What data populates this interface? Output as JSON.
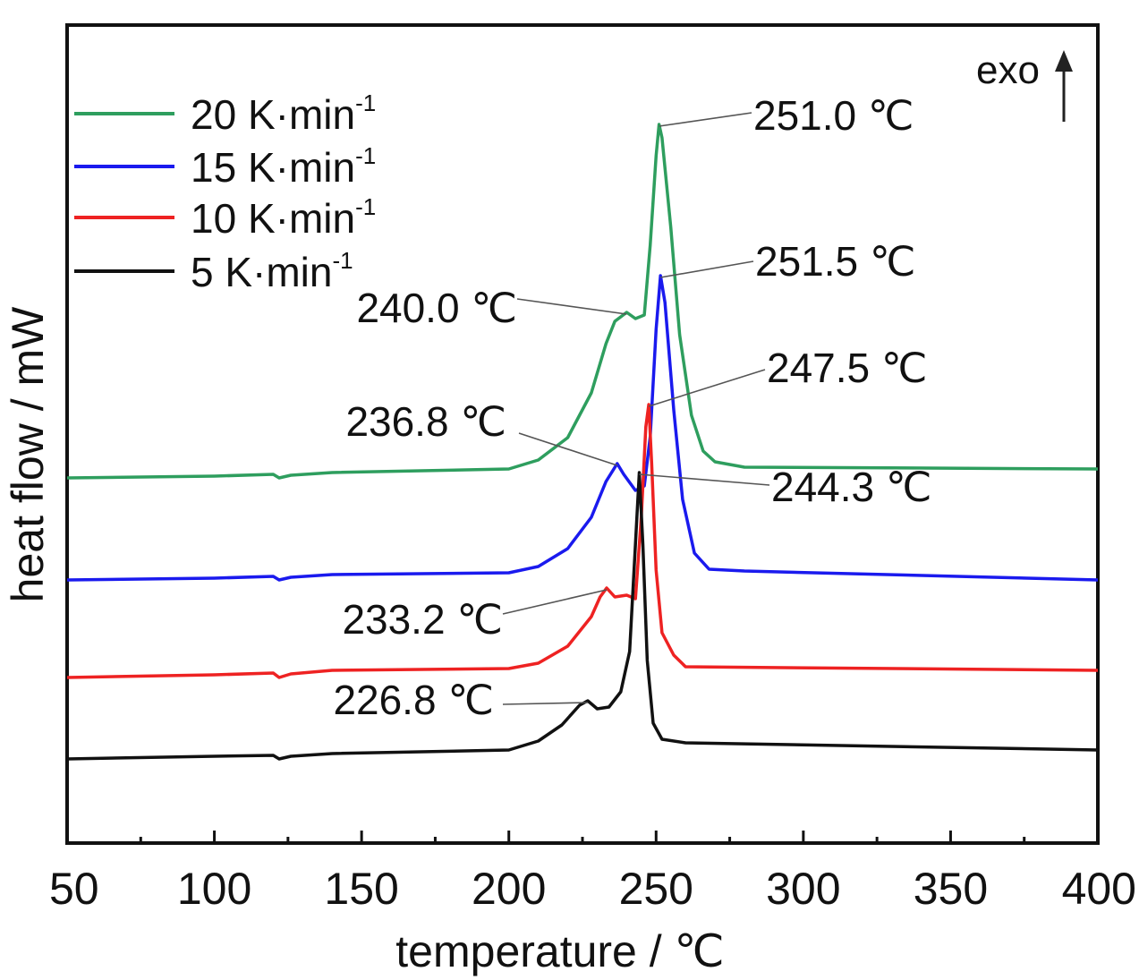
{
  "chart_data": {
    "type": "line",
    "xlabel": "temperature / ℃",
    "ylabel": "heat flow / mW",
    "xlim": [
      50,
      400
    ],
    "x_ticks": [
      50,
      100,
      150,
      200,
      250,
      300,
      350,
      400
    ],
    "grid": false,
    "legend_position": "top-left",
    "direction_label": "exo",
    "series": [
      {
        "name": "20 K·min",
        "name_sup": "-1",
        "color": "#2e9e5e",
        "offset": 3,
        "points": [
          [
            50,
            0.0
          ],
          [
            100,
            0.02
          ],
          [
            120,
            0.04
          ],
          [
            122,
            0.0
          ],
          [
            126,
            0.03
          ],
          [
            140,
            0.06
          ],
          [
            200,
            0.1
          ],
          [
            210,
            0.2
          ],
          [
            220,
            0.45
          ],
          [
            228,
            0.95
          ],
          [
            233,
            1.5
          ],
          [
            236,
            1.75
          ],
          [
            240,
            1.85
          ],
          [
            243,
            1.78
          ],
          [
            246,
            1.82
          ],
          [
            248,
            2.6
          ],
          [
            250,
            3.6
          ],
          [
            251,
            3.95
          ],
          [
            252,
            3.8
          ],
          [
            255,
            2.8
          ],
          [
            258,
            1.6
          ],
          [
            262,
            0.7
          ],
          [
            266,
            0.3
          ],
          [
            270,
            0.18
          ],
          [
            280,
            0.12
          ],
          [
            400,
            0.1
          ]
        ]
      },
      {
        "name": "15 K·min",
        "name_sup": "-1",
        "color": "#1a1aee",
        "offset": 2,
        "points": [
          [
            50,
            0.0
          ],
          [
            100,
            0.02
          ],
          [
            120,
            0.04
          ],
          [
            122,
            0.0
          ],
          [
            126,
            0.03
          ],
          [
            140,
            0.06
          ],
          [
            200,
            0.08
          ],
          [
            210,
            0.15
          ],
          [
            220,
            0.35
          ],
          [
            228,
            0.7
          ],
          [
            233,
            1.1
          ],
          [
            236.8,
            1.3
          ],
          [
            239,
            1.18
          ],
          [
            243,
            1.0
          ],
          [
            246,
            1.05
          ],
          [
            248,
            1.6
          ],
          [
            250,
            2.8
          ],
          [
            251.5,
            3.4
          ],
          [
            253,
            3.1
          ],
          [
            256,
            1.9
          ],
          [
            259,
            0.9
          ],
          [
            263,
            0.3
          ],
          [
            268,
            0.12
          ],
          [
            280,
            0.1
          ],
          [
            400,
            0.0
          ]
        ]
      },
      {
        "name": "10 K·min",
        "name_sup": "-1",
        "color": "#ee2222",
        "offset": 1,
        "points": [
          [
            50,
            0.0
          ],
          [
            100,
            0.03
          ],
          [
            120,
            0.05
          ],
          [
            122,
            0.0
          ],
          [
            126,
            0.04
          ],
          [
            140,
            0.08
          ],
          [
            200,
            0.1
          ],
          [
            210,
            0.16
          ],
          [
            220,
            0.35
          ],
          [
            228,
            0.68
          ],
          [
            231,
            0.9
          ],
          [
            233.2,
            1.0
          ],
          [
            236,
            0.9
          ],
          [
            240,
            0.92
          ],
          [
            243,
            0.88
          ],
          [
            245,
            1.8
          ],
          [
            246.5,
            2.8
          ],
          [
            247.5,
            3.05
          ],
          [
            248.5,
            2.4
          ],
          [
            250,
            1.2
          ],
          [
            252,
            0.5
          ],
          [
            256,
            0.25
          ],
          [
            260,
            0.12
          ],
          [
            400,
            0.08
          ]
        ]
      },
      {
        "name": "5 K·min",
        "name_sup": "-1",
        "color": "#111111",
        "offset": 0,
        "points": [
          [
            50,
            0.0
          ],
          [
            100,
            0.03
          ],
          [
            120,
            0.04
          ],
          [
            122,
            0.0
          ],
          [
            126,
            0.03
          ],
          [
            140,
            0.06
          ],
          [
            200,
            0.1
          ],
          [
            210,
            0.2
          ],
          [
            218,
            0.38
          ],
          [
            224,
            0.6
          ],
          [
            226.8,
            0.65
          ],
          [
            230,
            0.56
          ],
          [
            234,
            0.58
          ],
          [
            238,
            0.75
          ],
          [
            241,
            1.2
          ],
          [
            243,
            2.4
          ],
          [
            244.3,
            3.2
          ],
          [
            245.5,
            2.4
          ],
          [
            247,
            1.1
          ],
          [
            249,
            0.4
          ],
          [
            252,
            0.22
          ],
          [
            260,
            0.18
          ],
          [
            400,
            0.1
          ]
        ]
      }
    ],
    "annotations": [
      {
        "text": "251.0 ℃",
        "x": 251.0,
        "series": 0
      },
      {
        "text": "251.5 ℃",
        "x": 251.5,
        "series": 1
      },
      {
        "text": "240.0 ℃",
        "x": 240.0,
        "series": 0
      },
      {
        "text": "247.5 ℃",
        "x": 247.5,
        "series": 2
      },
      {
        "text": "236.8 ℃",
        "x": 236.8,
        "series": 1
      },
      {
        "text": "244.3 ℃",
        "x": 244.3,
        "series": 3
      },
      {
        "text": "233.2 ℃",
        "x": 233.2,
        "series": 2
      },
      {
        "text": "226.8 ℃",
        "x": 226.8,
        "series": 3
      }
    ]
  }
}
